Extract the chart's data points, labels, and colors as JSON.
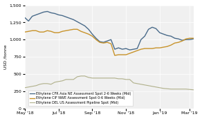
{
  "title": "",
  "ylabel": "USD /tonne",
  "ylim": [
    0,
    1500
  ],
  "yticks": [
    0,
    250,
    500,
    750,
    1000,
    1250,
    1500
  ],
  "background_color": "#ffffff",
  "plot_bg_color": "#f0f0f0",
  "legend": [
    "Ethylene CFR Asia NE Assessment Spot 2-6 Weeks (Mid)",
    "Ethylene CIF NWE Assessment Spot 0-6 Weeks (Mid)",
    "Ethylene DEL US Assessment Pipeline Spot (Mid)"
  ],
  "line_colors": [
    "#4a6b8a",
    "#c8932a",
    "#b0b08a"
  ],
  "series1": [
    1320,
    1270,
    1340,
    1360,
    1380,
    1400,
    1410,
    1390,
    1380,
    1360,
    1350,
    1330,
    1310,
    1290,
    1260,
    1230,
    1200,
    1150,
    1080,
    1020,
    970,
    960,
    980,
    1000,
    860,
    880,
    860,
    870,
    850,
    860,
    870,
    1000,
    1050,
    1150,
    1180,
    1160,
    1100,
    1080,
    1060,
    1050,
    1020,
    1010,
    990,
    1000,
    1000,
    1010
  ],
  "series2": [
    1110,
    1120,
    1130,
    1130,
    1110,
    1110,
    1130,
    1120,
    1100,
    1100,
    1120,
    1130,
    1140,
    1150,
    1150,
    1120,
    1100,
    1080,
    1050,
    1000,
    960,
    950,
    960,
    940,
    770,
    780,
    780,
    780,
    800,
    820,
    840,
    860,
    870,
    870,
    870,
    880,
    880,
    890,
    900,
    920,
    950,
    960,
    980,
    1010,
    1020,
    1020
  ],
  "series3": [
    300,
    310,
    320,
    330,
    350,
    360,
    360,
    350,
    380,
    390,
    400,
    420,
    420,
    420,
    460,
    470,
    470,
    450,
    440,
    440,
    440,
    440,
    440,
    440,
    440,
    430,
    430,
    420,
    420,
    370,
    360,
    350,
    340,
    330,
    320,
    310,
    300,
    290,
    285,
    280,
    280,
    280,
    280,
    280,
    275,
    270
  ],
  "n_points": 46,
  "xtick_dates": [
    "May '18",
    "Jul '18",
    "Sep '18",
    "Nov '18",
    "Jan '19",
    "Mar '19"
  ],
  "xtick_positions": [
    0,
    9,
    18,
    27,
    36,
    44
  ]
}
